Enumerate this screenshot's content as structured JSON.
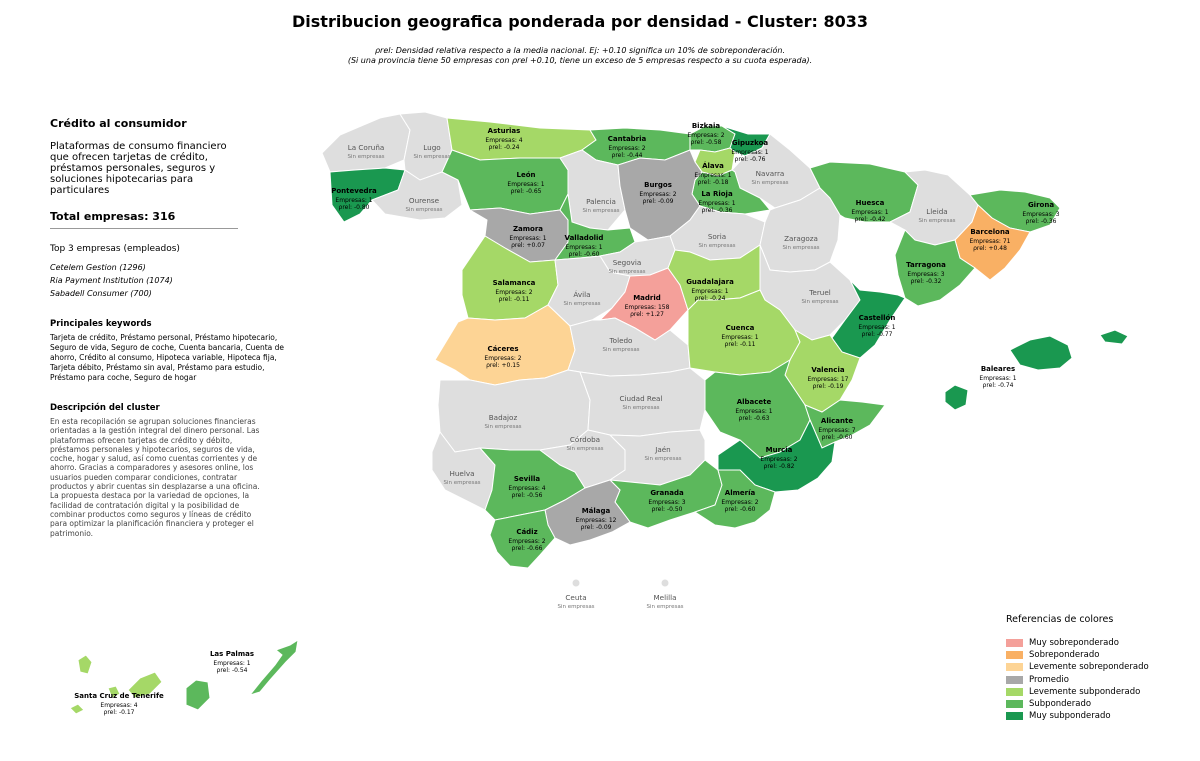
{
  "title": "Distribucion geografica ponderada por densidad - Cluster: 8033",
  "subtitle_line1": "ρrel: Densidad relativa respecto a la media nacional. Ej: +0.10 significa un 10% de sobreponderación.",
  "subtitle_line2": "(Si una provincia tiene 50 empresas con ρrel +0.10, tiene un exceso de 5 empresas respecto a su cuota esperada).",
  "sidebar": {
    "category": "Crédito al consumidor",
    "category_desc": "Plataformas de consumo financiero que ofrecen tarjetas de crédito, préstamos personales, seguros y soluciones hipotecarias para particulares",
    "total": "Total empresas: 316",
    "top3_title": "Top 3 empresas (empleados)",
    "top3": [
      "Cetelem Gestion (1296)",
      "Ria Payment Institution (1074)",
      "Sabadell Consumer (700)"
    ],
    "keywords_title": "Principales keywords",
    "keywords": "Tarjeta de crédito, Préstamo personal, Préstamo hipotecario, Seguro de vida, Seguro de coche, Cuenta bancaria, Cuenta de ahorro, Crédito al consumo, Hipoteca variable, Hipoteca fija, Tarjeta débito, Préstamo sin aval, Préstamo para estudio, Préstamo para coche, Seguro de hogar",
    "description_title": "Descripción del cluster",
    "description": "En esta recopilación se agrupan soluciones financieras orientadas a la gestión integral del dinero personal. Las plataformas ofrecen tarjetas de crédito y débito, préstamos personales y hipotecarios, seguros de vida, coche, hogar y salud, así como cuentas corrientes y de ahorro. Gracias a comparadores y asesores online, los usuarios pueden comparar condiciones, contratar productos y abrir cuentas sin desplazarse a una oficina. La propuesta destaca por la variedad de opciones, la facilidad de contratación digital y la posibilidad de combinar productos como seguros y líneas de crédito para optimizar la planificación financiera y proteger el patrimonio."
  },
  "legend": {
    "title": "Referencias de colores",
    "items": [
      {
        "label": "Muy sobreponderado",
        "color": "#f4a09a"
      },
      {
        "label": "Sobreponderado",
        "color": "#f9b064"
      },
      {
        "label": "Levemente sobreponderado",
        "color": "#fdd495"
      },
      {
        "label": "Promedio",
        "color": "#a8a8a8"
      },
      {
        "label": "Levemente subponderado",
        "color": "#a5d867"
      },
      {
        "label": "Subponderado",
        "color": "#5cb85c"
      },
      {
        "label": "Muy subponderado",
        "color": "#1a9850"
      }
    ]
  },
  "colors": {
    "none": "#dedede",
    "very_over": "#f4a09a",
    "over": "#f9b064",
    "slightly_over": "#fdd495",
    "average": "#a8a8a8",
    "slightly_under": "#a5d867",
    "under": "#5cb85c",
    "very_under": "#1a9850"
  },
  "no_companies_label": "Sin empresas",
  "provinces": [
    {
      "name": "Asturias",
      "empresas": "Empresas: 4",
      "rho": "ρrel: -0.24",
      "cat": "slightly_under"
    },
    {
      "name": "Cantabria",
      "empresas": "Empresas: 2",
      "rho": "ρrel: -0.44",
      "cat": "under"
    },
    {
      "name": "Bizkaia",
      "empresas": "Empresas: 2",
      "rho": "ρrel: -0.58",
      "cat": "under"
    },
    {
      "name": "Gipuzkoa",
      "empresas": "Empresas: 1",
      "rho": "ρrel: -0.76",
      "cat": "very_under"
    },
    {
      "name": "Álava",
      "empresas": "Empresas: 1",
      "rho": "ρrel: -0.18",
      "cat": "slightly_under"
    },
    {
      "name": "Pontevedra",
      "empresas": "Empresas: 1",
      "rho": "ρrel: -0.80",
      "cat": "very_under"
    },
    {
      "name": "León",
      "empresas": "Empresas: 1",
      "rho": "ρrel: -0.65",
      "cat": "under"
    },
    {
      "name": "Burgos",
      "empresas": "Empresas: 2",
      "rho": "ρrel: -0.09",
      "cat": "average"
    },
    {
      "name": "La Rioja",
      "empresas": "Empresas: 1",
      "rho": "ρrel: -0.36",
      "cat": "under"
    },
    {
      "name": "Huesca",
      "empresas": "Empresas: 1",
      "rho": "ρrel: -0.42",
      "cat": "under"
    },
    {
      "name": "Girona",
      "empresas": "Empresas: 3",
      "rho": "ρrel: -0.36",
      "cat": "under"
    },
    {
      "name": "Barcelona",
      "empresas": "Empresas: 71",
      "rho": "ρrel: +0.48",
      "cat": "over"
    },
    {
      "name": "Zamora",
      "empresas": "Empresas: 1",
      "rho": "ρrel: +0.07",
      "cat": "average"
    },
    {
      "name": "Valladolid",
      "empresas": "Empresas: 1",
      "rho": "ρrel: -0.60",
      "cat": "under"
    },
    {
      "name": "Tarragona",
      "empresas": "Empresas: 3",
      "rho": "ρrel: -0.32",
      "cat": "under"
    },
    {
      "name": "Salamanca",
      "empresas": "Empresas: 2",
      "rho": "ρrel: -0.11",
      "cat": "slightly_under"
    },
    {
      "name": "Guadalajara",
      "empresas": "Empresas: 1",
      "rho": "ρrel: -0.24",
      "cat": "slightly_under"
    },
    {
      "name": "Madrid",
      "empresas": "Empresas: 158",
      "rho": "ρrel: +1.27",
      "cat": "very_over"
    },
    {
      "name": "Castellón",
      "empresas": "Empresas: 1",
      "rho": "ρrel: -0.77",
      "cat": "very_under"
    },
    {
      "name": "Cáceres",
      "empresas": "Empresas: 2",
      "rho": "ρrel: +0.15",
      "cat": "slightly_over"
    },
    {
      "name": "Cuenca",
      "empresas": "Empresas: 1",
      "rho": "ρrel: -0.11",
      "cat": "slightly_under"
    },
    {
      "name": "Valencia",
      "empresas": "Empresas: 17",
      "rho": "ρrel: -0.19",
      "cat": "slightly_under"
    },
    {
      "name": "Baleares",
      "empresas": "Empresas: 1",
      "rho": "ρrel: -0.74",
      "cat": "very_under"
    },
    {
      "name": "Albacete",
      "empresas": "Empresas: 1",
      "rho": "ρrel: -0.63",
      "cat": "under"
    },
    {
      "name": "Alicante",
      "empresas": "Empresas: 7",
      "rho": "ρrel: -0.60",
      "cat": "under"
    },
    {
      "name": "Murcia",
      "empresas": "Empresas: 2",
      "rho": "ρrel: -0.82",
      "cat": "very_under"
    },
    {
      "name": "Sevilla",
      "empresas": "Empresas: 4",
      "rho": "ρrel: -0.56",
      "cat": "under"
    },
    {
      "name": "Granada",
      "empresas": "Empresas: 3",
      "rho": "ρrel: -0.50",
      "cat": "under"
    },
    {
      "name": "Almería",
      "empresas": "Empresas: 2",
      "rho": "ρrel: -0.60",
      "cat": "under"
    },
    {
      "name": "Málaga",
      "empresas": "Empresas: 12",
      "rho": "ρrel: -0.09",
      "cat": "average"
    },
    {
      "name": "Cádiz",
      "empresas": "Empresas: 2",
      "rho": "ρrel: -0.66",
      "cat": "under"
    },
    {
      "name": "Las Palmas",
      "empresas": "Empresas: 1",
      "rho": "ρrel: -0.54",
      "cat": "under"
    },
    {
      "name": "Santa Cruz de Tenerife",
      "empresas": "Empresas: 4",
      "rho": "ρrel: -0.17",
      "cat": "slightly_under"
    },
    {
      "name": "La Coruña",
      "cat": "none"
    },
    {
      "name": "Lugo",
      "cat": "none"
    },
    {
      "name": "Ourense",
      "cat": "none"
    },
    {
      "name": "Navarra",
      "cat": "none"
    },
    {
      "name": "Palencia",
      "cat": "none"
    },
    {
      "name": "Lleida",
      "cat": "none"
    },
    {
      "name": "Soria",
      "cat": "none"
    },
    {
      "name": "Zaragoza",
      "cat": "none"
    },
    {
      "name": "Segovia",
      "cat": "none"
    },
    {
      "name": "Ávila",
      "cat": "none"
    },
    {
      "name": "Teruel",
      "cat": "none"
    },
    {
      "name": "Toledo",
      "cat": "none"
    },
    {
      "name": "Ciudad Real",
      "cat": "none"
    },
    {
      "name": "Badajoz",
      "cat": "none"
    },
    {
      "name": "Córdoba",
      "cat": "none"
    },
    {
      "name": "Jaén",
      "cat": "none"
    },
    {
      "name": "Huelva",
      "cat": "none"
    },
    {
      "name": "Ceuta",
      "cat": "none"
    },
    {
      "name": "Melilla",
      "cat": "none"
    }
  ]
}
